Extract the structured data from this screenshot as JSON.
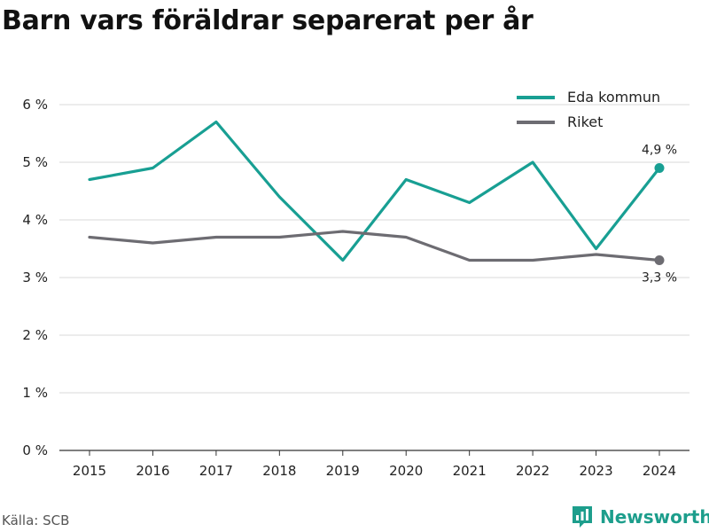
{
  "title": "Barn vars föräldrar separerat per år",
  "source": "Källa: SCB",
  "brand": {
    "name": "Newsworthy",
    "icon": "newsworthy-logo-icon"
  },
  "colors": {
    "eda": "#189f93",
    "riket": "#6d6c72",
    "grid": "#d9d9d9",
    "axis": "#333333"
  },
  "chart_data": {
    "type": "line",
    "title": "Barn vars föräldrar separerat per år",
    "xlabel": "",
    "ylabel": "",
    "x": [
      "2015",
      "2016",
      "2017",
      "2018",
      "2019",
      "2020",
      "2021",
      "2022",
      "2023",
      "2024"
    ],
    "ylim": [
      0,
      6
    ],
    "yticks": [
      {
        "value": 0,
        "label": "0 %"
      },
      {
        "value": 1,
        "label": "1 %"
      },
      {
        "value": 2,
        "label": "2 %"
      },
      {
        "value": 3,
        "label": "3 %"
      },
      {
        "value": 4,
        "label": "4 %"
      },
      {
        "value": 5,
        "label": "5 %"
      },
      {
        "value": 6,
        "label": "6 %"
      }
    ],
    "grid": true,
    "legend_position": "top-right",
    "series": [
      {
        "name": "Eda kommun",
        "color": "#189f93",
        "values": [
          4.7,
          4.9,
          5.7,
          4.4,
          3.3,
          4.7,
          4.3,
          5.0,
          3.5,
          4.9
        ],
        "end_label": "4,9 %",
        "end_label_position": "above"
      },
      {
        "name": "Riket",
        "color": "#6d6c72",
        "values": [
          3.7,
          3.6,
          3.7,
          3.7,
          3.8,
          3.7,
          3.3,
          3.3,
          3.4,
          3.3
        ],
        "end_label": "3,3 %",
        "end_label_position": "below"
      }
    ]
  }
}
